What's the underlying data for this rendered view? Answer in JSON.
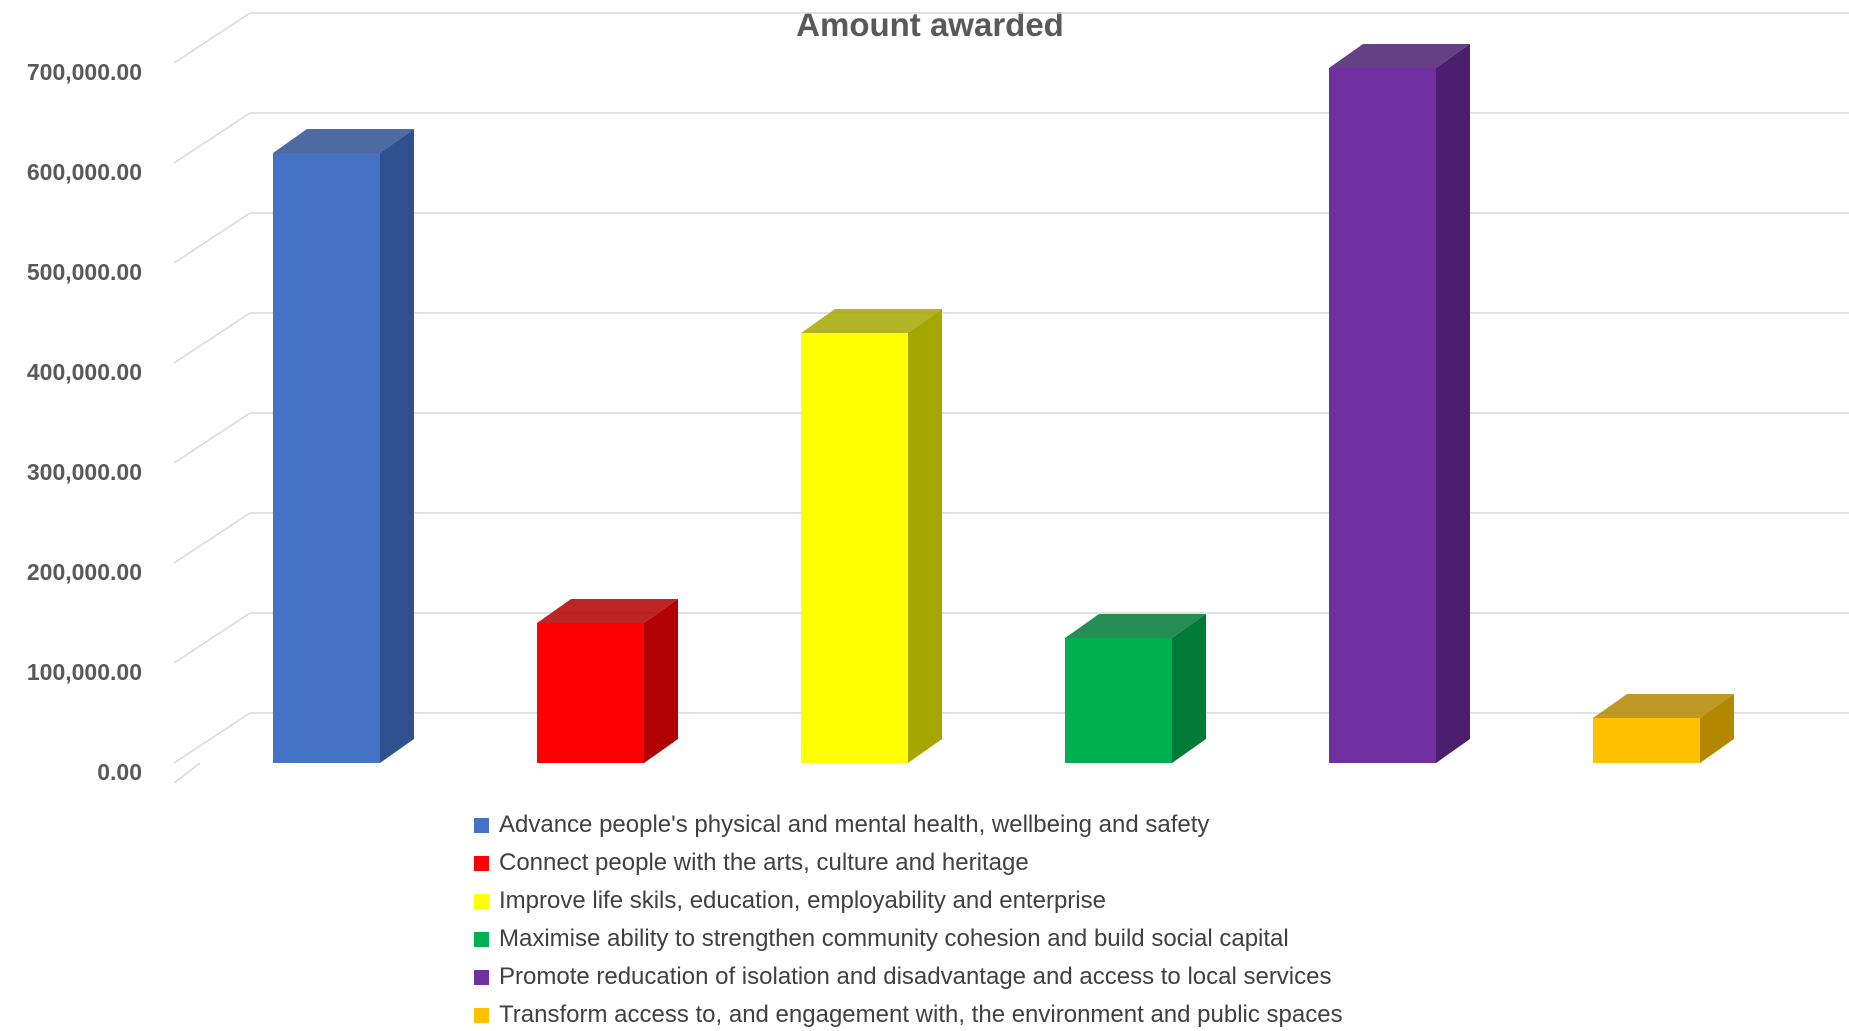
{
  "chart_data": {
    "type": "bar",
    "title": "Amount awarded",
    "xlabel": "",
    "ylabel": "",
    "ylim": [
      0,
      700000
    ],
    "y_ticks": [
      "0.00",
      "100,000.00",
      "200,000.00",
      "300,000.00",
      "400,000.00",
      "500,000.00",
      "600,000.00",
      "700,000.00"
    ],
    "grid": true,
    "three_d": true,
    "legend_position": "bottom",
    "categories": [
      "Advance people's physical and mental health, wellbeing and safety",
      "Connect people with the arts, culture and heritage",
      "Improve life skils, education, employability and enterprise",
      "Maximise ability to strengthen community cohesion and build social capital",
      "Promote reducation of isolation and disadvantage and access to local services",
      "Transform access to, and engagement with, the environment and public spaces"
    ],
    "values": [
      610000,
      140000,
      430000,
      125000,
      695000,
      45000
    ],
    "colors": [
      "#4472C4",
      "#FF0000",
      "#FFFF00",
      "#00B050",
      "#7030A0",
      "#FFC000"
    ],
    "side_colors": [
      "#2F5190",
      "#B30000",
      "#A6A600",
      "#007A37",
      "#4B1F6E",
      "#B38700"
    ]
  }
}
